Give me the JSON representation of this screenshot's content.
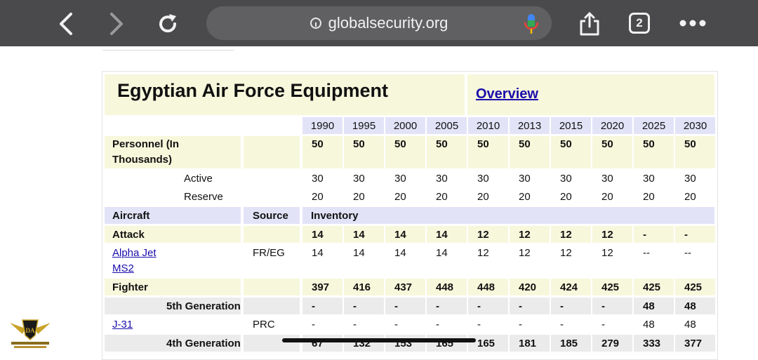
{
  "browser": {
    "url": "globalsecurity.org",
    "tab_count": "2"
  },
  "page": {
    "title": "Egyptian Air Force Equipment",
    "overview_link": "Overview"
  },
  "table": {
    "years": [
      "1990",
      "1995",
      "2000",
      "2005",
      "2010",
      "2013",
      "2015",
      "2020",
      "2025",
      "2030"
    ],
    "personnel": {
      "label_line1": "Personnel (In",
      "label_line2": "Thousands)",
      "values": [
        "50",
        "50",
        "50",
        "50",
        "50",
        "50",
        "50",
        "50",
        "50",
        "50"
      ]
    },
    "active": {
      "label": "Active",
      "values": [
        "30",
        "30",
        "30",
        "30",
        "30",
        "30",
        "30",
        "30",
        "30",
        "30"
      ]
    },
    "reserve": {
      "label": "Reserve",
      "values": [
        "20",
        "20",
        "20",
        "20",
        "20",
        "20",
        "20",
        "20",
        "20",
        "20"
      ]
    },
    "section_header": {
      "aircraft": "Aircraft",
      "source": "Source",
      "inventory": "Inventory"
    },
    "attack": {
      "label": "Attack",
      "values": [
        "14",
        "14",
        "14",
        "14",
        "12",
        "12",
        "12",
        "12",
        "-",
        "-"
      ]
    },
    "alpha_jet": {
      "label_line1": "Alpha Jet",
      "label_line2": "MS2",
      "source": "FR/EG",
      "values": [
        "14",
        "14",
        "14",
        "14",
        "12",
        "12",
        "12",
        "12",
        "--",
        "--"
      ]
    },
    "fighter": {
      "label": "Fighter",
      "values": [
        "397",
        "416",
        "437",
        "448",
        "448",
        "420",
        "424",
        "425",
        "425",
        "425"
      ]
    },
    "fifth_gen": {
      "label": "5th Generation",
      "values": [
        "-",
        "-",
        "-",
        "-",
        "-",
        "-",
        "-",
        "-",
        "48",
        "48"
      ]
    },
    "j31": {
      "label": "J-31",
      "source": "PRC",
      "values": [
        "-",
        "-",
        "-",
        "-",
        "-",
        "-",
        "-",
        "-",
        "48",
        "48"
      ]
    },
    "fourth_gen": {
      "label": "4th Generation",
      "values": [
        "67",
        "132",
        "153",
        "165",
        "165",
        "181",
        "185",
        "279",
        "333",
        "377"
      ]
    }
  },
  "colors": {
    "title_bg": "#f7f7dc",
    "year_bg": "#e3e3f8",
    "row_yellow": "#f7f7dc",
    "row_gray": "#ebebeb",
    "link": "#1a0dab"
  }
}
